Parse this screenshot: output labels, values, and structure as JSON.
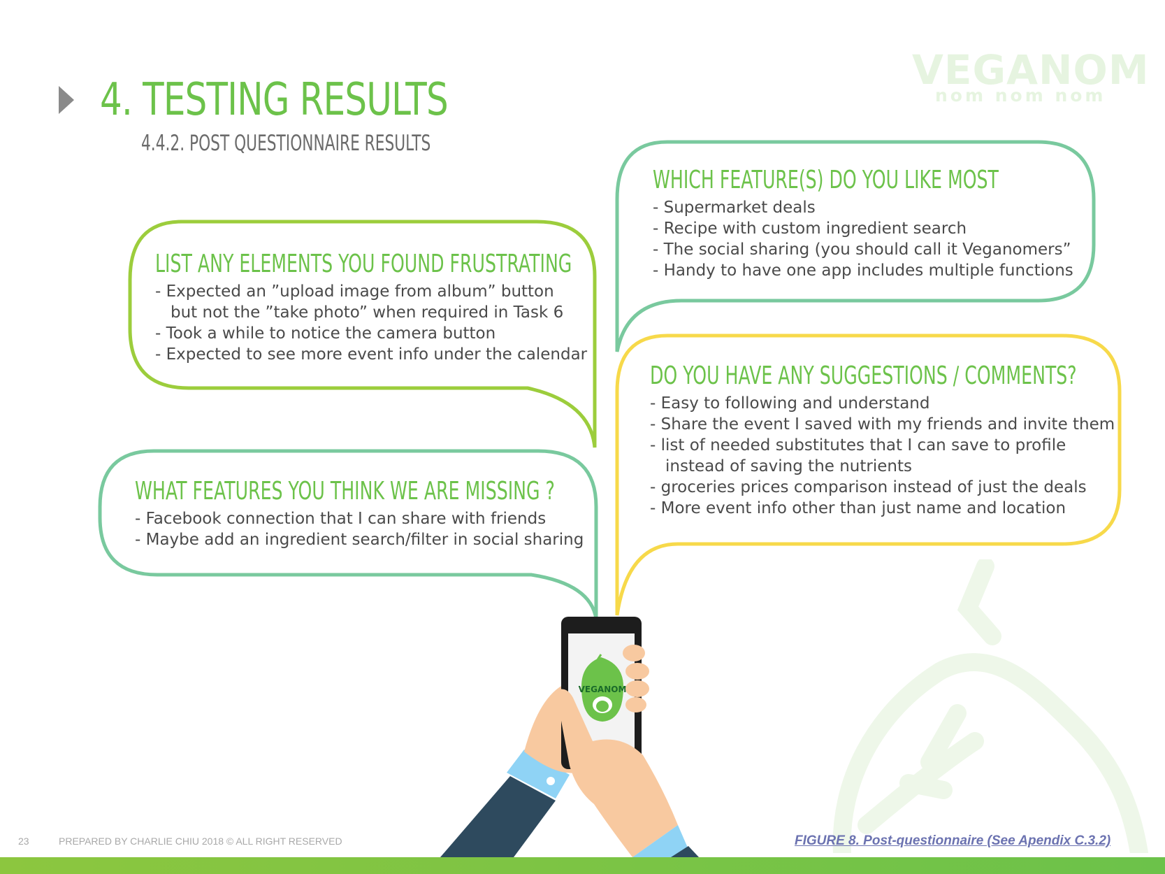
{
  "header": {
    "title": "4. TESTING RESULTS",
    "subtitle": "4.4.2. POST QUESTIONNAIRE RESULTS"
  },
  "brand": {
    "logo_text": "VEGANOM",
    "tagline": "nom nom nom",
    "colors": {
      "green": "#6cc24a",
      "lime": "#9ccd3c",
      "teal": "#79c99e",
      "yellow": "#f7d94a",
      "text": "#4a4a4a"
    }
  },
  "bubbles": {
    "frustrating": {
      "question": "LIST ANY ELEMENTS YOU FOUND FRUSTRATING",
      "lines": [
        "- Expected an ”upload image from album” button",
        "but not the ”take photo” when required in Task 6",
        "- Took a while to notice the camera button",
        "- Expected to see more event info under the calendar"
      ]
    },
    "missing": {
      "question": "WHAT FEATURES  YOU THINK WE ARE MISSING ?",
      "lines": [
        "- Facebook connection that I can share with friends",
        "- Maybe add an ingredient search/filter in social sharing"
      ]
    },
    "like_most": {
      "question": "WHICH FEATURE(S) DO YOU LIKE MOST",
      "lines": [
        "- Supermarket deals",
        "- Recipe with custom ingredient search",
        "- The social sharing (you should call it Veganomers”",
        "- Handy to have one app includes multiple functions"
      ]
    },
    "suggestions": {
      "question": "DO YOU HAVE ANY SUGGESTIONS / COMMENTS?",
      "lines": [
        "- Easy to following and understand",
        "- Share the event I saved with my friends and invite them",
        "- list of needed substitutes that I can save to profile",
        "instead of saving the nutrients",
        "- groceries prices comparison instead of just the deals",
        "- More event info other than just name and location"
      ]
    }
  },
  "phone": {
    "screen_logo": "VEGANOM"
  },
  "footer": {
    "page_number": "23",
    "credit": "PREPARED BY CHARLIE CHIU 2018  © ALL RIGHT RESERVED",
    "caption": "FIGURE 8. Post-questionnaire  (See Apendix C.3.2)"
  }
}
